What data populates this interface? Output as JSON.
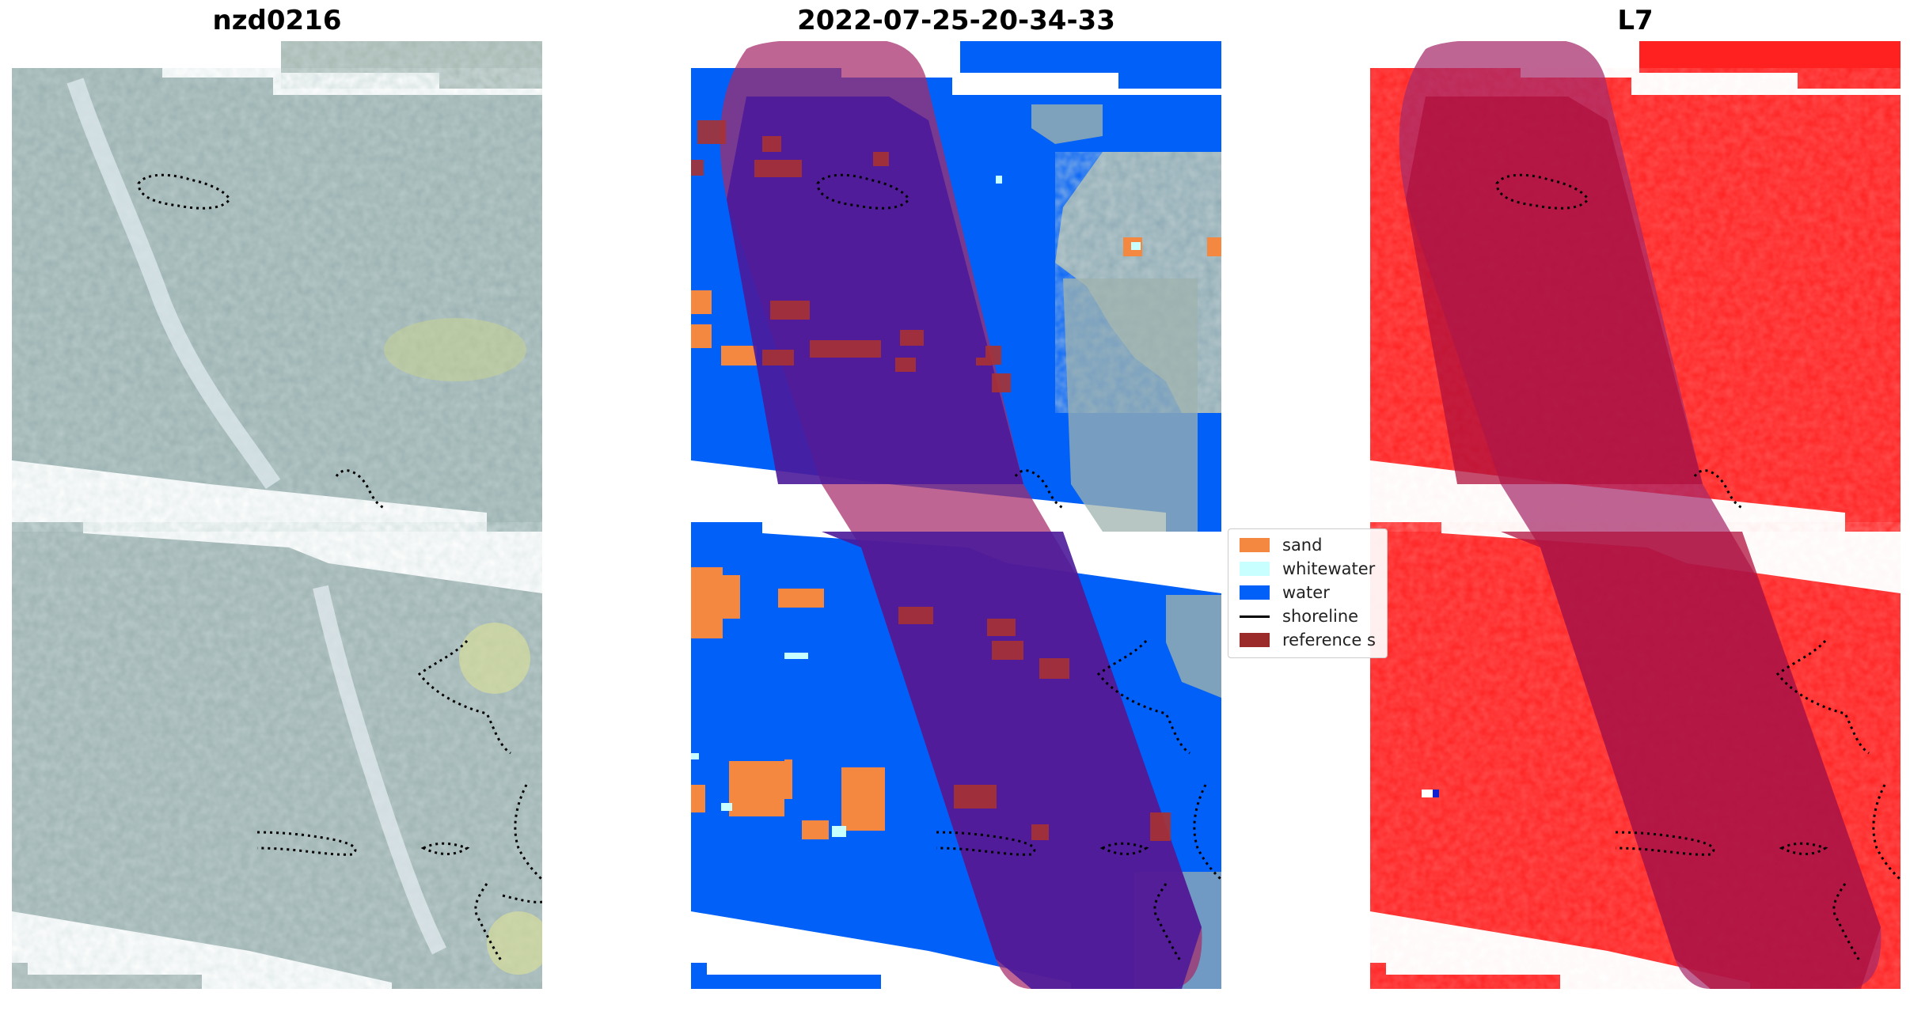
{
  "panels": [
    {
      "title": "nzd0216",
      "style": "rgb"
    },
    {
      "title": "2022-07-25-20-34-33",
      "style": "classified"
    },
    {
      "title": "L7",
      "style": "index"
    }
  ],
  "legend": {
    "items": [
      {
        "label": "sand",
        "kind": "patch",
        "color": "#f58840"
      },
      {
        "label": "whitewater",
        "kind": "patch",
        "color": "#c8ffff"
      },
      {
        "label": "water",
        "kind": "patch",
        "color": "#0060f8"
      },
      {
        "label": "shoreline",
        "kind": "line",
        "color": "#000000"
      },
      {
        "label": "reference s",
        "kind": "patch",
        "color": "#9b2b2b"
      }
    ]
  },
  "colors": {
    "rgb_base": "#9fb3b3",
    "classified_water": "#0060f8",
    "index_red": "#ff2020",
    "reference_overlay": "#a62a6a",
    "reference_dark": "#4b1a9a"
  }
}
